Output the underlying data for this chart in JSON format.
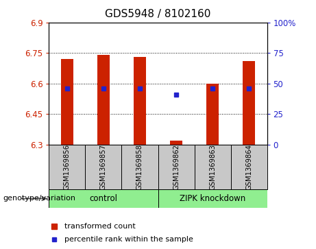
{
  "title": "GDS5948 / 8102160",
  "samples": [
    "GSM1369856",
    "GSM1369857",
    "GSM1369858",
    "GSM1369862",
    "GSM1369863",
    "GSM1369864"
  ],
  "bar_bottoms": [
    6.3,
    6.3,
    6.3,
    6.3,
    6.3,
    6.3
  ],
  "bar_tops": [
    6.72,
    6.74,
    6.73,
    6.32,
    6.6,
    6.71
  ],
  "blue_dot_y": [
    6.575,
    6.575,
    6.575,
    6.545,
    6.575,
    6.575
  ],
  "ylim": [
    6.3,
    6.9
  ],
  "y2lim": [
    0,
    100
  ],
  "yticks": [
    6.3,
    6.45,
    6.6,
    6.75,
    6.9
  ],
  "y2ticks": [
    0,
    25,
    50,
    75,
    100
  ],
  "ytick_labels": [
    "6.3",
    "6.45",
    "6.6",
    "6.75",
    "6.9"
  ],
  "y2tick_labels": [
    "0",
    "25",
    "50",
    "75",
    "100%"
  ],
  "bar_color": "#CC2200",
  "dot_color": "#2222CC",
  "plot_bg": "#FFFFFF",
  "label_bg": "#C8C8C8",
  "control_bg": "#90EE90",
  "control_label": "control",
  "zipk_label": "ZIPK knockdown",
  "genotype_label": "genotype/variation",
  "legend_bar_label": "transformed count",
  "legend_dot_label": "percentile rank within the sample",
  "bar_width": 0.35,
  "title_fontsize": 11,
  "tick_fontsize": 8.5,
  "label_fontsize": 8.5
}
